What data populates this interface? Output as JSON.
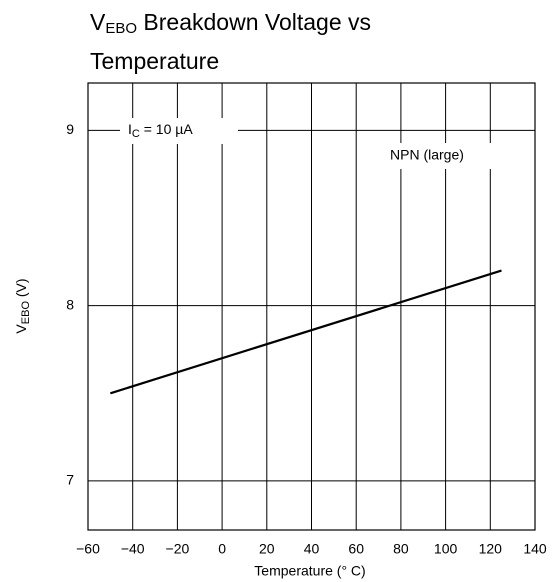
{
  "chart_data": {
    "type": "line",
    "title_main": "V",
    "title_sub": "EBO",
    "title_rest": "Breakdown Voltage vs Temperature",
    "xlabel": "Temperature (° C)",
    "ylabel_main": "V",
    "ylabel_sub": "EBO",
    "ylabel_rest": " (V)",
    "annotation_main": "I",
    "annotation_sub": "C",
    "annotation_rest": " = 10 µA",
    "x": [
      -50,
      125
    ],
    "series": [
      {
        "name": "NPN (large)",
        "color": "#000000",
        "values": [
          7.5,
          8.2
        ]
      }
    ],
    "xlim": [
      -60,
      140
    ],
    "xticks": [
      {
        "value": -60,
        "label": "−60"
      },
      {
        "value": -40,
        "label": "−40"
      },
      {
        "value": -20,
        "label": "−20"
      },
      0,
      20,
      40,
      60,
      80,
      100,
      120,
      140
    ],
    "ylim": [
      6.72,
      9.27
    ],
    "yticks": [
      7,
      8,
      9
    ],
    "grid": true
  }
}
